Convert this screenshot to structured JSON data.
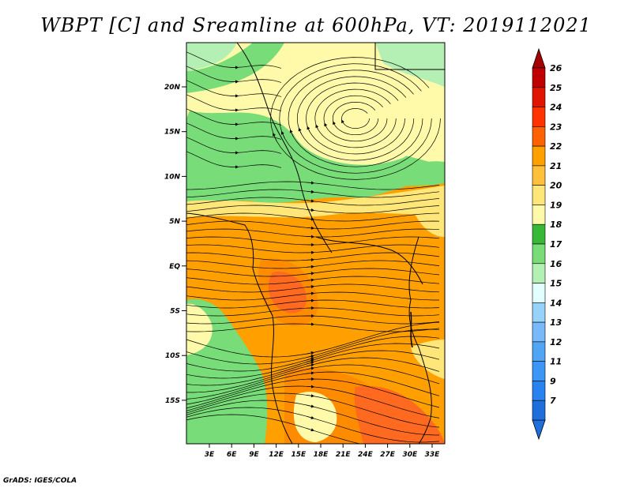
{
  "title": "WBPT [C] and Sreamline at 600hPa, VT: 2019112021",
  "footer": "GrADS: IGES/COLA",
  "map": {
    "lat_labels": [
      "20N",
      "15N",
      "10N",
      "5N",
      "EQ",
      "5S",
      "10S",
      "15S"
    ],
    "lon_labels": [
      "3E",
      "6E",
      "9E",
      "12E",
      "15E",
      "18E",
      "21E",
      "24E",
      "27E",
      "30E",
      "33E"
    ]
  },
  "colorbar": {
    "labels": [
      "7",
      "9",
      "11",
      "12",
      "13",
      "14",
      "15",
      "16",
      "17",
      "18",
      "19",
      "20",
      "21",
      "22",
      "23",
      "24",
      "25",
      "26"
    ],
    "colors": [
      "#1e6fdc",
      "#2882f0",
      "#3c96f5",
      "#50a5f5",
      "#78b9fa",
      "#96d2fa",
      "#e1ffff",
      "#b4f0b4",
      "#78dc78",
      "#37b937",
      "#fffaaa",
      "#ffe678",
      "#ffc03c",
      "#ffa000",
      "#ff6000",
      "#ff3200",
      "#e11400",
      "#c00000"
    ],
    "tip_low": "#1e6fdc",
    "tip_high": "#a50000"
  }
}
